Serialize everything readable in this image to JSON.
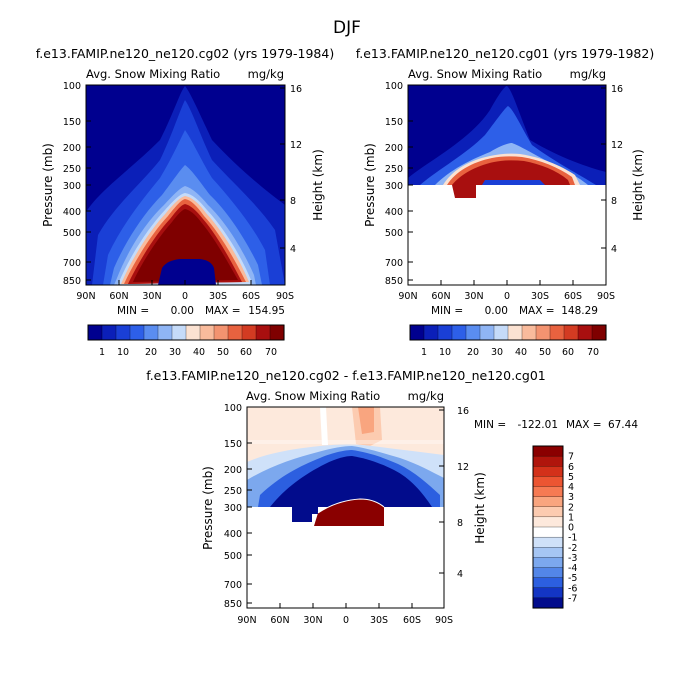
{
  "figure_title": "DJF",
  "chart_data": [
    {
      "type": "heatmap",
      "title": "f.e13.FAMIP.ne120_ne120.cg02 (yrs 1979-1984)",
      "subtitle_left": "Avg. Snow Mixing Ratio",
      "subtitle_right": "mg/kg",
      "xlabel": "",
      "ylabel": "Pressure (mb)",
      "ylabel_right": "Height (km)",
      "x_ticks": [
        "90N",
        "60N",
        "30N",
        "0",
        "30S",
        "60S",
        "90S"
      ],
      "y_ticks": [
        "100",
        "150",
        "200",
        "250",
        "300",
        "400",
        "500",
        "700",
        "850"
      ],
      "y_ticks_right": [
        "16",
        "12",
        "8",
        "4"
      ],
      "stats": {
        "min_label": "MIN =",
        "min": "0.00",
        "max_label": "MAX =",
        "max": "154.95"
      },
      "colorbar_labels": [
        "1",
        "10",
        "20",
        "30",
        "40",
        "50",
        "60",
        "70"
      ],
      "description": "Snow maximum (>70 mg/kg) between 300 and 700 mb centered over the equator"
    },
    {
      "type": "heatmap",
      "title": "f.e13.FAMIP.ne120_ne120.cg01 (yrs 1979-1982)",
      "subtitle_left": "Avg. Snow Mixing Ratio",
      "subtitle_right": "mg/kg",
      "ylabel": "Pressure (mb)",
      "ylabel_right": "Height (km)",
      "x_ticks": [
        "90N",
        "60N",
        "30N",
        "0",
        "30S",
        "60S",
        "90S"
      ],
      "y_ticks": [
        "100",
        "150",
        "200",
        "250",
        "300",
        "400",
        "500",
        "700",
        "850"
      ],
      "y_ticks_right": [
        "16",
        "12",
        "8",
        "4"
      ],
      "stats": {
        "min_label": "MIN =",
        "min": "0.00",
        "max_label": "MAX =",
        "max": "148.29"
      },
      "colorbar_labels": [
        "1",
        "10",
        "20",
        "30",
        "40",
        "50",
        "60",
        "70"
      ],
      "description": "Data only above ~300 mb; maximum band near 200-300 mb"
    },
    {
      "type": "heatmap",
      "title": "f.e13.FAMIP.ne120_ne120.cg02 - f.e13.FAMIP.ne120_ne120.cg01",
      "subtitle_left": "Avg. Snow Mixing Ratio",
      "subtitle_right": "mg/kg",
      "ylabel": "Pressure (mb)",
      "ylabel_right": "Height (km)",
      "x_ticks": [
        "90N",
        "60N",
        "30N",
        "0",
        "30S",
        "60S",
        "90S"
      ],
      "y_ticks": [
        "100",
        "150",
        "200",
        "250",
        "300",
        "400",
        "500",
        "700",
        "850"
      ],
      "y_ticks_right": [
        "16",
        "12",
        "8",
        "4"
      ],
      "stats": {
        "min_label": "MIN =",
        "min": "-122.01",
        "max_label": "MAX =",
        "max": "67.44"
      },
      "colorbar_labels": [
        "7",
        "6",
        "5",
        "4",
        "3",
        "2",
        "1",
        "0",
        "-1",
        "-2",
        "-3",
        "-4",
        "-5",
        "-6",
        "-7"
      ]
    }
  ],
  "colors": {
    "seq": [
      "#00008f",
      "#0b1fb8",
      "#1a3fd6",
      "#2d5fe8",
      "#5a8df0",
      "#8fb5f5",
      "#c5dbf9",
      "#fbe2d2",
      "#f9bb9c",
      "#f39370",
      "#e8623f",
      "#d33b22",
      "#a80f0f",
      "#7f0000"
    ],
    "div": [
      "#8a0000",
      "#b0150c",
      "#d3311a",
      "#ec5532",
      "#f67a53",
      "#f9a57f",
      "#fccbb0",
      "#fde9dc",
      "#ffffff",
      "#cfe1f9",
      "#a6c6f4",
      "#7ca8ee",
      "#5386e8",
      "#2c5fe0",
      "#1335c4",
      "#020c8c"
    ]
  }
}
